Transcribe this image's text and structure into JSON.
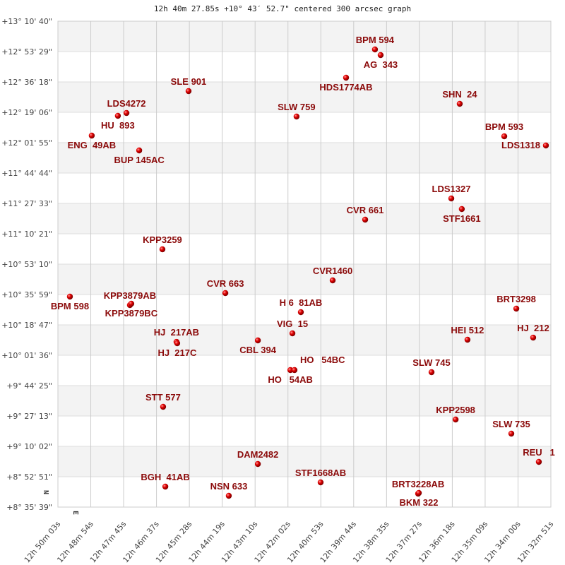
{
  "chart_data": {
    "type": "scatter",
    "title": "12h 40m 27.85s +10° 43′ 52.7\" centered 300 arcsec graph",
    "x_axis": {
      "unit": "RA hours",
      "range": [
        12.834167,
        12.5475
      ],
      "ticks": [
        "12h 50m 03s",
        "12h 48m 54s",
        "12h 47m 45s",
        "12h 46m 37s",
        "12h 45m 28s",
        "12h 44m 19s",
        "12h 43m 10s",
        "12h 42m 02s",
        "12h 40m 53s",
        "12h 39m 44s",
        "12h 38m 35s",
        "12h 37m 27s",
        "12h 36m 18s",
        "12h 35m 09s",
        "12h 34m 00s",
        "12h 32m 51s"
      ]
    },
    "y_axis": {
      "unit": "Dec degrees",
      "range": [
        8.594167,
        13.177778
      ],
      "ticks": [
        "+13° 10' 40\"",
        "+12° 53' 29\"",
        "+12° 36' 18\"",
        "+12° 19' 06\"",
        "+12° 01' 55\"",
        "+11° 44' 44\"",
        "+11° 27' 33\"",
        "+11° 10' 21\"",
        "+10° 53' 10\"",
        "+10° 35' 59\"",
        "+10° 18' 47\"",
        "+10° 01' 36\"",
        "+9° 44' 25\"",
        "+9° 27' 13\"",
        "+9° 10' 02\"",
        "+8° 52' 51\"",
        "+8° 35' 39\""
      ]
    },
    "grid": true,
    "compass": {
      "north": "N",
      "east": "E"
    },
    "colors": {
      "label": "#8b0a0a",
      "point": "#e00000",
      "band": "#f3f3f3",
      "grid": "#cccccc"
    },
    "points": [
      {
        "name": "BPM 594",
        "ra": 12.6498,
        "dec": 12.9113
      },
      {
        "name": "AG  343",
        "ra": 12.6465,
        "dec": 12.858
      },
      {
        "name": "HDS1774AB",
        "ra": 12.6666,
        "dec": 12.6448
      },
      {
        "name": "SLE 901",
        "ra": 12.7582,
        "dec": 12.5182
      },
      {
        "name": "SHN  24",
        "ra": 12.6005,
        "dec": 12.3983
      },
      {
        "name": "LDS4272",
        "ra": 12.7943,
        "dec": 12.3117
      },
      {
        "name": "HU  893",
        "ra": 12.7993,
        "dec": 12.2851
      },
      {
        "name": "SLW 759",
        "ra": 12.6954,
        "dec": 12.2784
      },
      {
        "name": "ENG  49AB",
        "ra": 12.8145,
        "dec": 12.0985
      },
      {
        "name": "BPM 593",
        "ra": 12.5746,
        "dec": 12.0919
      },
      {
        "name": "LDS1318",
        "ra": 12.5504,
        "dec": 12.0053
      },
      {
        "name": "BUP 145AC",
        "ra": 12.7869,
        "dec": 11.9586
      },
      {
        "name": "LDS1327",
        "ra": 12.6054,
        "dec": 11.5056
      },
      {
        "name": "STF1661",
        "ra": 12.5993,
        "dec": 11.4057
      },
      {
        "name": "CVR 661",
        "ra": 12.6555,
        "dec": 11.3057
      },
      {
        "name": "KPP3259",
        "ra": 12.7734,
        "dec": 11.0259
      },
      {
        "name": "CVR1460",
        "ra": 12.6744,
        "dec": 10.7328
      },
      {
        "name": "BPM 598",
        "ra": 12.8272,
        "dec": 10.5795
      },
      {
        "name": "CVR 663",
        "ra": 12.7368,
        "dec": 10.6129
      },
      {
        "name": "KPP3879AB",
        "ra": 12.7923,
        "dec": 10.4996
      },
      {
        "name": "KPP3879BC",
        "ra": 12.7915,
        "dec": 10.5129
      },
      {
        "name": "H 6  81AB",
        "ra": 12.6929,
        "dec": 10.433
      },
      {
        "name": "BRT3298",
        "ra": 12.5676,
        "dec": 10.4663
      },
      {
        "name": "VIG  15",
        "ra": 12.6978,
        "dec": 10.233
      },
      {
        "name": "HJ  217AB",
        "ra": 12.7652,
        "dec": 10.153
      },
      {
        "name": "HJ  217C",
        "ra": 12.7648,
        "dec": 10.1397
      },
      {
        "name": "CBL 394",
        "ra": 12.7179,
        "dec": 10.1664
      },
      {
        "name": "HEI 512",
        "ra": 12.596,
        "dec": 10.1731
      },
      {
        "name": "HJ  212",
        "ra": 12.5578,
        "dec": 10.193
      },
      {
        "name": "HO   54AB",
        "ra": 12.699,
        "dec": 9.8867
      },
      {
        "name": "HO   54BC",
        "ra": 12.6966,
        "dec": 9.8867
      },
      {
        "name": "SLW 745",
        "ra": 12.6169,
        "dec": 9.8667
      },
      {
        "name": "STT 577",
        "ra": 12.773,
        "dec": 9.5402
      },
      {
        "name": "KPP2598",
        "ra": 12.6029,
        "dec": 9.4203
      },
      {
        "name": "SLW 735",
        "ra": 12.5705,
        "dec": 9.2871
      },
      {
        "name": "REU   1",
        "ra": 12.5545,
        "dec": 9.0206
      },
      {
        "name": "DAM2482",
        "ra": 12.7179,
        "dec": 9.0006
      },
      {
        "name": "STF1668AB",
        "ra": 12.6814,
        "dec": 8.8273
      },
      {
        "name": "BGH  41AB",
        "ra": 12.7717,
        "dec": 8.7874
      },
      {
        "name": "BRT3228AB",
        "ra": 12.6247,
        "dec": 8.7208
      },
      {
        "name": "BKM 322",
        "ra": 12.6243,
        "dec": 8.7274
      },
      {
        "name": "NSN 633",
        "ra": 12.7348,
        "dec": 8.7008
      }
    ]
  }
}
